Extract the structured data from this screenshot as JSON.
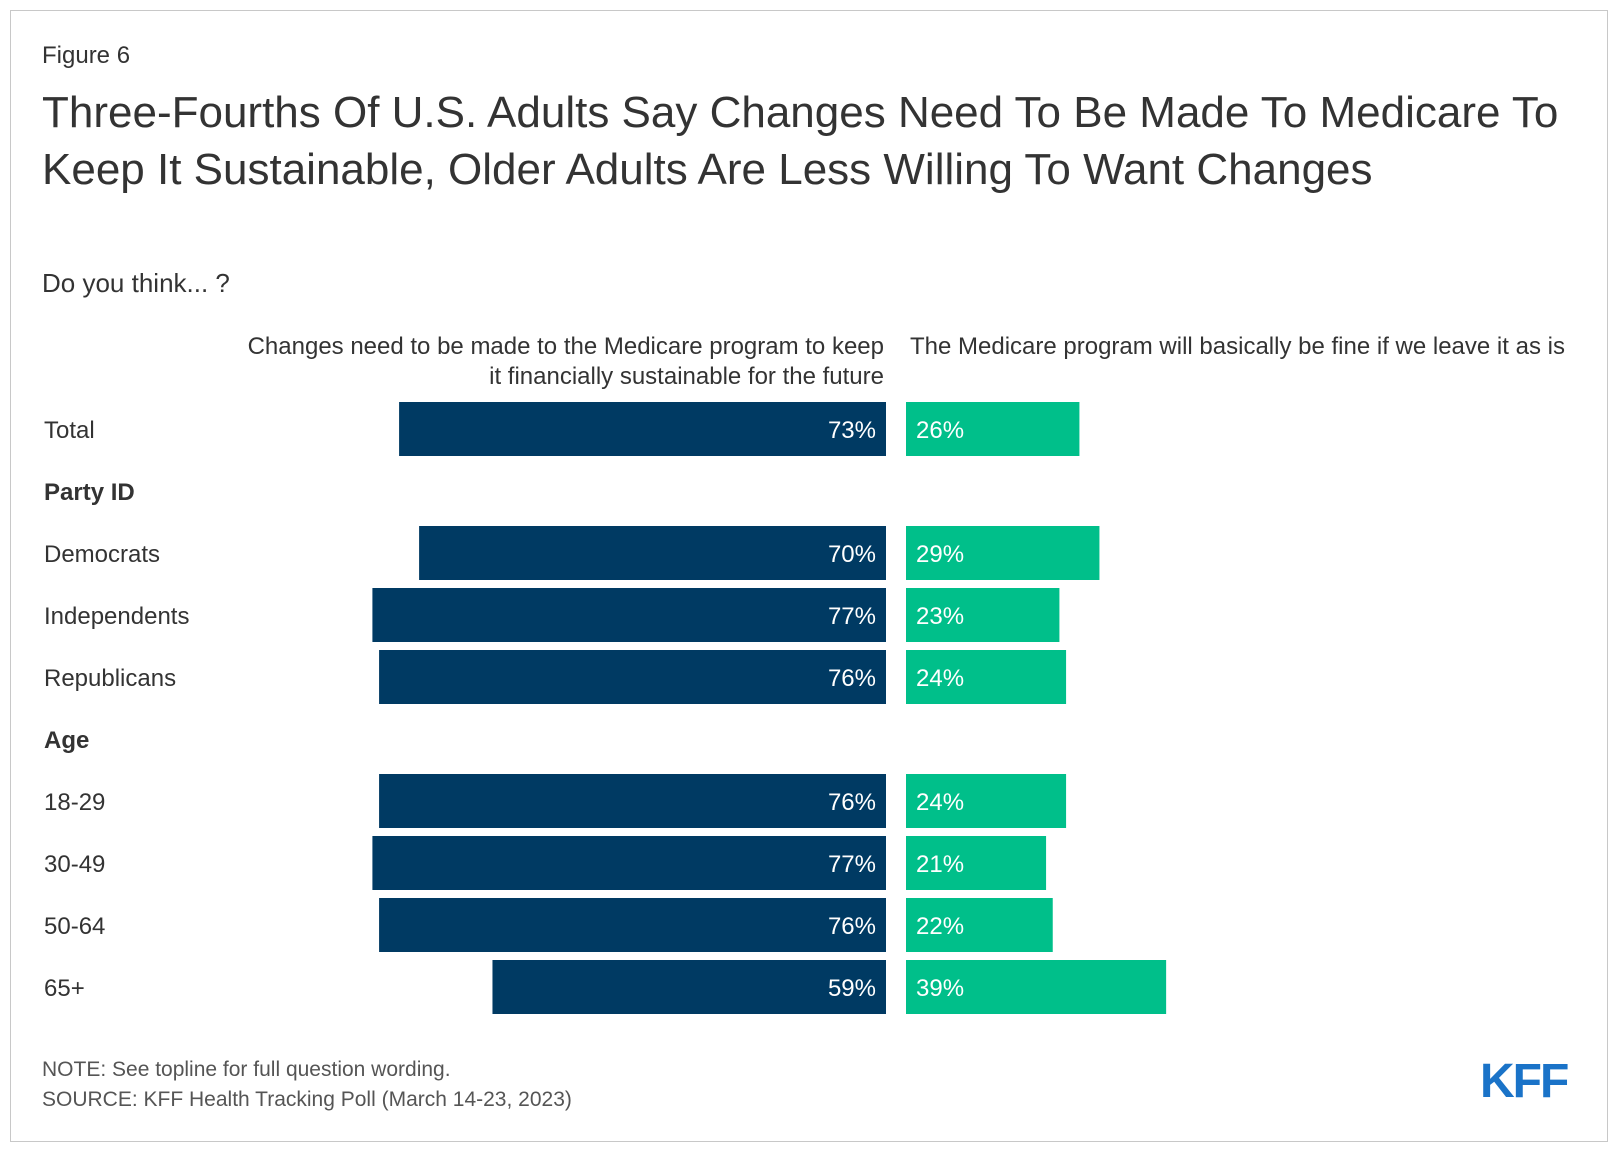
{
  "figure_label": "Figure 6",
  "title": "Three-Fourths Of U.S. Adults Say Changes Need To Be Made To Medicare To Keep It Sustainable, Older Adults Are Less Willing To Want Changes",
  "subtitle": "Do you think... ?",
  "note": "NOTE: See topline for full question wording.",
  "source": "SOURCE: KFF Health Tracking Poll (March 14-23, 2023)",
  "logo_text": "KFF",
  "colors": {
    "changes": "#003a63",
    "fine": "#00bf8a",
    "logo": "#1a73c8"
  },
  "chart_data": {
    "type": "bar",
    "orientation": "horizontal-diverging",
    "series": [
      {
        "name": "Changes need to be made to the Medicare program to keep it financially sustainable for the future",
        "color": "#003a63"
      },
      {
        "name": "The Medicare program will basically be fine if we leave it as is",
        "color": "#00bf8a"
      }
    ],
    "rows": [
      {
        "label": "Total",
        "kind": "row",
        "changes": 73,
        "fine": 26
      },
      {
        "label": "Party ID",
        "kind": "header"
      },
      {
        "label": "Democrats",
        "kind": "row",
        "changes": 70,
        "fine": 29
      },
      {
        "label": "Independents",
        "kind": "row",
        "changes": 77,
        "fine": 23
      },
      {
        "label": "Republicans",
        "kind": "row",
        "changes": 76,
        "fine": 24
      },
      {
        "label": "Age",
        "kind": "header"
      },
      {
        "label": "18-29",
        "kind": "row",
        "changes": 76,
        "fine": 24
      },
      {
        "label": "30-49",
        "kind": "row",
        "changes": 77,
        "fine": 21
      },
      {
        "label": "50-64",
        "kind": "row",
        "changes": 76,
        "fine": 22
      },
      {
        "label": "65+",
        "kind": "row",
        "changes": 59,
        "fine": 39
      }
    ],
    "value_suffix": "%"
  }
}
